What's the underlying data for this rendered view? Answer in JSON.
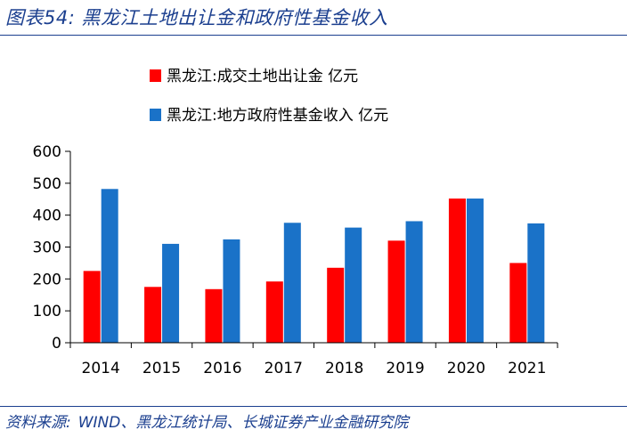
{
  "title": "图表54:  黑龙江土地出让金和政府性基金收入",
  "source": {
    "label": "资料来源:",
    "text": "WIND、黑龙江统计局、长城证券产业金融研究院"
  },
  "colors": {
    "red": "#ff0000",
    "blue": "#1a72c8",
    "accent": "#1b3f8f"
  },
  "chart_data": {
    "type": "bar",
    "title": "黑龙江土地出让金和政府性基金收入",
    "categories": [
      "2014",
      "2015",
      "2016",
      "2017",
      "2018",
      "2019",
      "2020",
      "2021"
    ],
    "series": [
      {
        "name": "黑龙江:成交土地出让金 亿元",
        "color": "#ff0000",
        "values": [
          225,
          175,
          168,
          192,
          235,
          320,
          452,
          250
        ]
      },
      {
        "name": "黑龙江:地方政府性基金收入 亿元",
        "color": "#1a72c8",
        "values": [
          482,
          310,
          324,
          376,
          361,
          381,
          452,
          374
        ]
      }
    ],
    "yticks": [
      "0",
      "100",
      "200",
      "300",
      "400",
      "500",
      "600"
    ],
    "ylim": [
      0,
      600
    ],
    "xlabel": "",
    "ylabel": "",
    "legend": "top-left",
    "grid": false
  }
}
